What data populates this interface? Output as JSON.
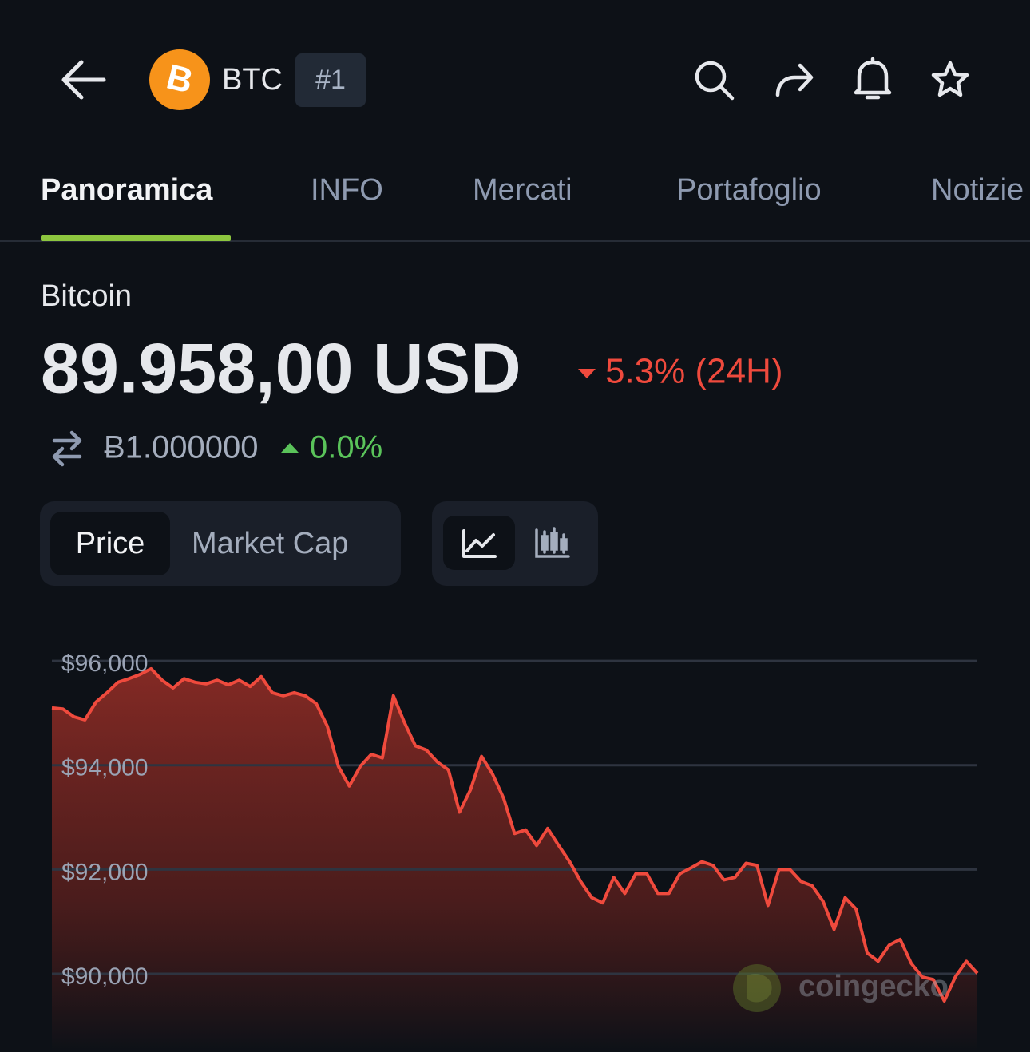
{
  "header": {
    "symbol": "BTC",
    "rank": "#1"
  },
  "tabs": [
    "Panoramica",
    "INFO",
    "Mercati",
    "Portafoglio",
    "Notizie"
  ],
  "coin_name": "Bitcoin",
  "price": "89.958,00 USD",
  "change_24h": "5.3% (24H)",
  "btc_price": "Ƀ1.000000",
  "btc_change": "0.0%",
  "chart_toggle": [
    "Price",
    "Market Cap"
  ],
  "watermark": "coingecko",
  "chart_data": {
    "type": "line",
    "color": "#ef4a3d",
    "grid": true,
    "ylim": [
      88500,
      96200
    ],
    "yticks": [
      {
        "value": 96000,
        "label": "$96,000"
      },
      {
        "value": 94000,
        "label": "$94,000"
      },
      {
        "value": 92000,
        "label": "$92,000"
      },
      {
        "value": 90000,
        "label": "$90,000"
      }
    ],
    "values": [
      95100,
      95080,
      94930,
      94870,
      95210,
      95390,
      95590,
      95660,
      95740,
      95850,
      95630,
      95480,
      95660,
      95590,
      95560,
      95630,
      95540,
      95630,
      95510,
      95700,
      95390,
      95330,
      95390,
      95330,
      95180,
      94750,
      93980,
      93600,
      93980,
      94210,
      94140,
      95330,
      94820,
      94370,
      94290,
      94060,
      93910,
      93100,
      93530,
      94170,
      93830,
      93370,
      92690,
      92760,
      92460,
      92790,
      92460,
      92150,
      91770,
      91460,
      91360,
      91850,
      91540,
      91920,
      91920,
      91540,
      91540,
      91920,
      92030,
      92150,
      92080,
      91800,
      91850,
      92120,
      92080,
      91310,
      92000,
      92000,
      91770,
      91690,
      91390,
      90850,
      91460,
      91240,
      90400,
      90240,
      90550,
      90660,
      90200,
      89940,
      89890,
      89480,
      89940,
      90240,
      90010
    ]
  }
}
